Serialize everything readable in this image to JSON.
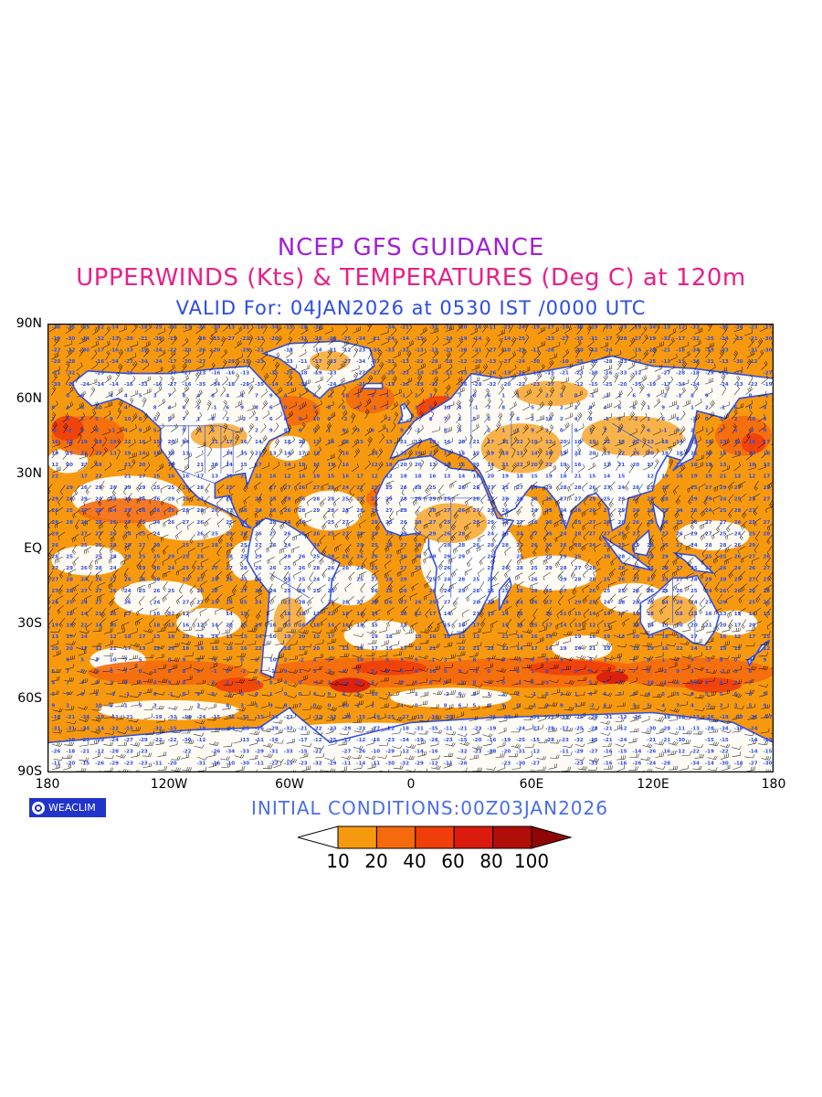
{
  "header": {
    "line1": "NCEP GFS GUIDANCE",
    "line2": "UPPERWINDS (Kts) & TEMPERATURES (Deg C) at 120m",
    "line3": "VALID For: 04JAN2026 at 0530 IST /0000 UTC"
  },
  "axes": {
    "y_labels": [
      "90N",
      "60N",
      "30N",
      "EQ",
      "30S",
      "60S",
      "90S"
    ],
    "x_labels": [
      "180",
      "120W",
      "60W",
      "0",
      "60E",
      "120E",
      "180"
    ]
  },
  "footer": {
    "badge": "WEACLIM",
    "initial_conditions": "INITIAL CONDITIONS:00Z03JAN2026"
  },
  "legend": {
    "labels": [
      "10",
      "20",
      "40",
      "60",
      "80",
      "100"
    ],
    "colors": [
      "#ffffff",
      "#f7990f",
      "#f46a0c",
      "#ef3e0a",
      "#d91a0c",
      "#b10e0a",
      "#8e0606"
    ]
  },
  "map": {
    "wind_fill_colors": {
      "10-20": "#f7990f",
      "20-40": "#f46a0c",
      "40-60": "#ef3e0a",
      "60-80": "#d91a0c"
    },
    "coastline_color": "#2b4de8",
    "temperature_label_color": "#2b4de8",
    "wind_barb_color": "#000000"
  }
}
